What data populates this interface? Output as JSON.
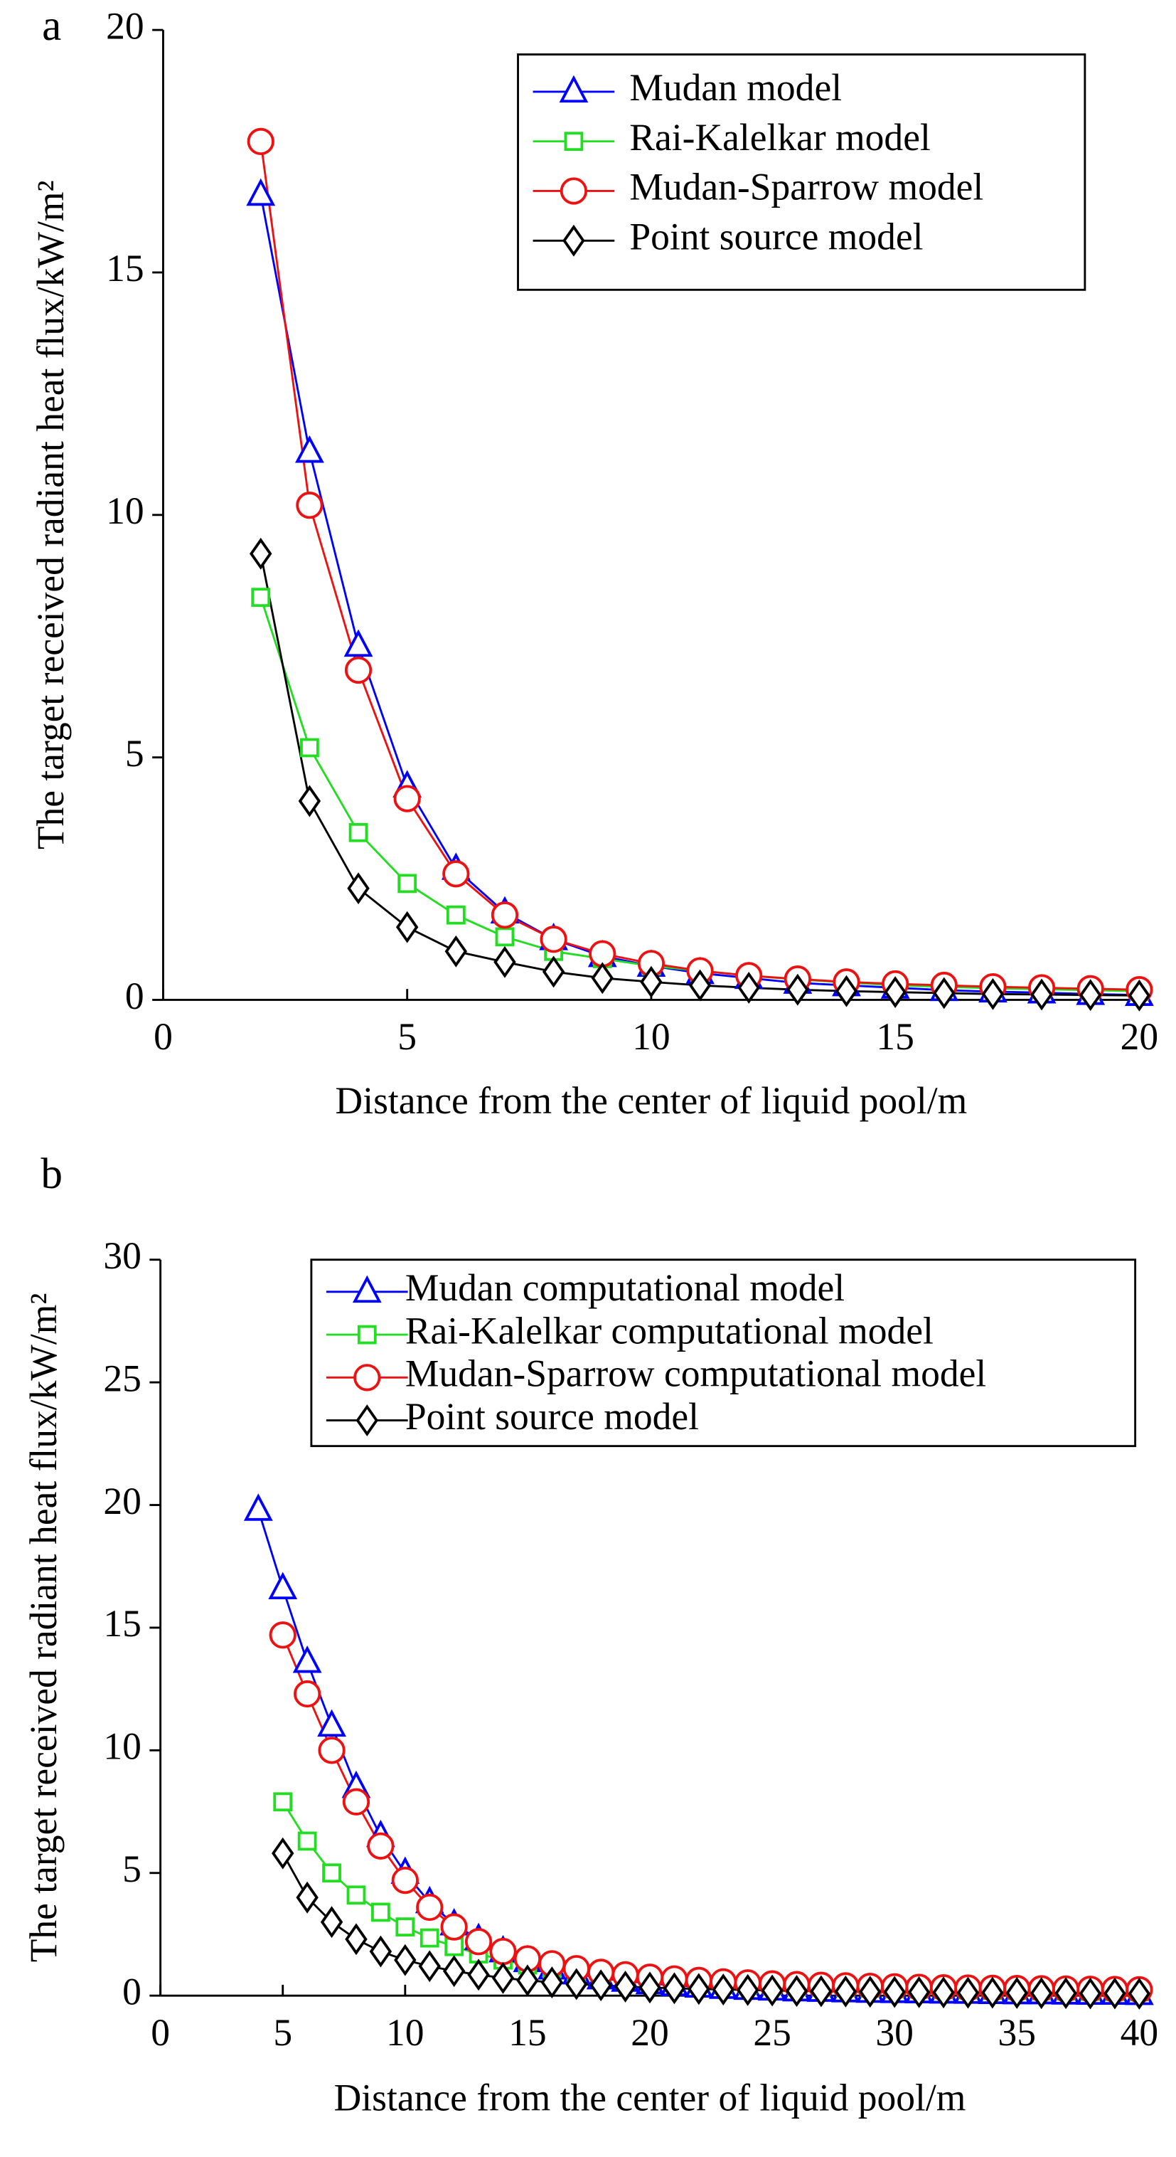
{
  "chart_data": [
    {
      "type": "line",
      "panel_label": "a",
      "xlabel": "Distance from the center of liquid pool/m",
      "ylabel": "The target received radiant heat flux/kW/m²",
      "x": [
        2,
        3,
        4,
        5,
        6,
        7,
        8,
        9,
        10,
        11,
        12,
        13,
        14,
        15,
        16,
        17,
        18,
        19,
        20
      ],
      "xlim": [
        0,
        20
      ],
      "xticks": [
        0,
        5,
        10,
        15,
        20
      ],
      "ylim": [
        0,
        20
      ],
      "yticks": [
        0,
        5,
        10,
        15,
        20
      ],
      "legend": "upper right",
      "series": [
        {
          "name": "Mudan model",
          "color": "#0000ff",
          "marker": "triangle",
          "values": [
            16.6,
            11.3,
            7.3,
            4.4,
            2.7,
            1.8,
            1.25,
            0.9,
            0.7,
            0.55,
            0.45,
            0.35,
            0.3,
            0.25,
            0.2,
            0.17,
            0.15,
            0.12,
            0.1
          ]
        },
        {
          "name": "Rai-Kalelkar model",
          "color": "#22dd22",
          "marker": "square",
          "values": [
            8.3,
            5.2,
            3.45,
            2.4,
            1.75,
            1.3,
            1.0,
            0.85,
            0.7,
            0.6,
            0.5,
            0.42,
            0.36,
            0.3,
            0.27,
            0.24,
            0.22,
            0.2,
            0.18
          ]
        },
        {
          "name": "Mudan-Sparrow model",
          "color": "#ee1111",
          "marker": "circle",
          "values": [
            17.7,
            10.2,
            6.8,
            4.15,
            2.6,
            1.75,
            1.25,
            0.95,
            0.75,
            0.6,
            0.5,
            0.43,
            0.37,
            0.33,
            0.3,
            0.27,
            0.25,
            0.23,
            0.21
          ]
        },
        {
          "name": "Point source model",
          "color": "#000000",
          "marker": "diamond",
          "values": [
            9.2,
            4.1,
            2.3,
            1.5,
            1.0,
            0.78,
            0.58,
            0.45,
            0.37,
            0.3,
            0.25,
            0.21,
            0.18,
            0.16,
            0.14,
            0.12,
            0.11,
            0.1,
            0.09
          ]
        }
      ]
    },
    {
      "type": "line",
      "panel_label": "b",
      "xlabel": "Distance from the center of liquid pool/m",
      "ylabel": "The target received radiant heat flux/kW/m²",
      "x": [
        4,
        5,
        6,
        7,
        8,
        9,
        10,
        11,
        12,
        13,
        14,
        15,
        16,
        17,
        18,
        19,
        20,
        21,
        22,
        23,
        24,
        25,
        26,
        27,
        28,
        29,
        30,
        31,
        32,
        33,
        34,
        35,
        36,
        37,
        38,
        39,
        40
      ],
      "xlim": [
        0,
        40
      ],
      "xticks": [
        0,
        5,
        10,
        15,
        20,
        25,
        30,
        35,
        40
      ],
      "ylim": [
        0,
        30
      ],
      "yticks": [
        0,
        5,
        10,
        15,
        20,
        25,
        30
      ],
      "legend": "upper right",
      "series": [
        {
          "name": "Mudan computational model",
          "color": "#0000ff",
          "marker": "triangle",
          "values": [
            19.8,
            16.6,
            13.6,
            11.0,
            8.5,
            6.5,
            5.0,
            3.8,
            2.9,
            2.3,
            1.8,
            1.4,
            1.1,
            0.9,
            0.7,
            0.6,
            0.5,
            0.42,
            0.36,
            0.31,
            0.27,
            0.24,
            0.21,
            0.19,
            0.17,
            0.15,
            0.14,
            0.13,
            0.12,
            0.11,
            0.1,
            0.09,
            0.09,
            0.08,
            0.07,
            0.07,
            0.06
          ]
        },
        {
          "name": "Rai-Kalelkar computational model",
          "color": "#22dd22",
          "marker": "square",
          "values": [
            null,
            7.9,
            6.3,
            5.0,
            4.1,
            3.4,
            2.8,
            2.35,
            2.0,
            1.7,
            1.45,
            1.25,
            1.1,
            0.95,
            0.85,
            0.75,
            0.67,
            0.6,
            0.55,
            0.5,
            0.45,
            0.42,
            0.38,
            0.35,
            0.33,
            0.31,
            0.29,
            0.27,
            0.25,
            0.24,
            0.22,
            0.21,
            0.2,
            0.19,
            0.18,
            0.17,
            0.16
          ]
        },
        {
          "name": "Mudan-Sparrow computational model",
          "color": "#ee1111",
          "marker": "circle",
          "values": [
            null,
            14.7,
            12.3,
            10.0,
            7.9,
            6.1,
            4.7,
            3.6,
            2.8,
            2.2,
            1.8,
            1.5,
            1.3,
            1.1,
            0.95,
            0.85,
            0.75,
            0.68,
            0.62,
            0.56,
            0.52,
            0.48,
            0.45,
            0.42,
            0.4,
            0.38,
            0.36,
            0.34,
            0.32,
            0.31,
            0.3,
            0.29,
            0.28,
            0.27,
            0.26,
            0.25,
            0.24
          ]
        },
        {
          "name": "Point source model",
          "color": "#000000",
          "marker": "diamond",
          "values": [
            null,
            5.8,
            4.0,
            3.0,
            2.3,
            1.8,
            1.45,
            1.2,
            1.0,
            0.85,
            0.72,
            0.62,
            0.54,
            0.47,
            0.42,
            0.37,
            0.33,
            0.3,
            0.27,
            0.25,
            0.23,
            0.21,
            0.19,
            0.18,
            0.17,
            0.16,
            0.15,
            0.14,
            0.13,
            0.12,
            0.12,
            0.11,
            0.1,
            0.1,
            0.09,
            0.09,
            0.08
          ]
        }
      ]
    }
  ]
}
